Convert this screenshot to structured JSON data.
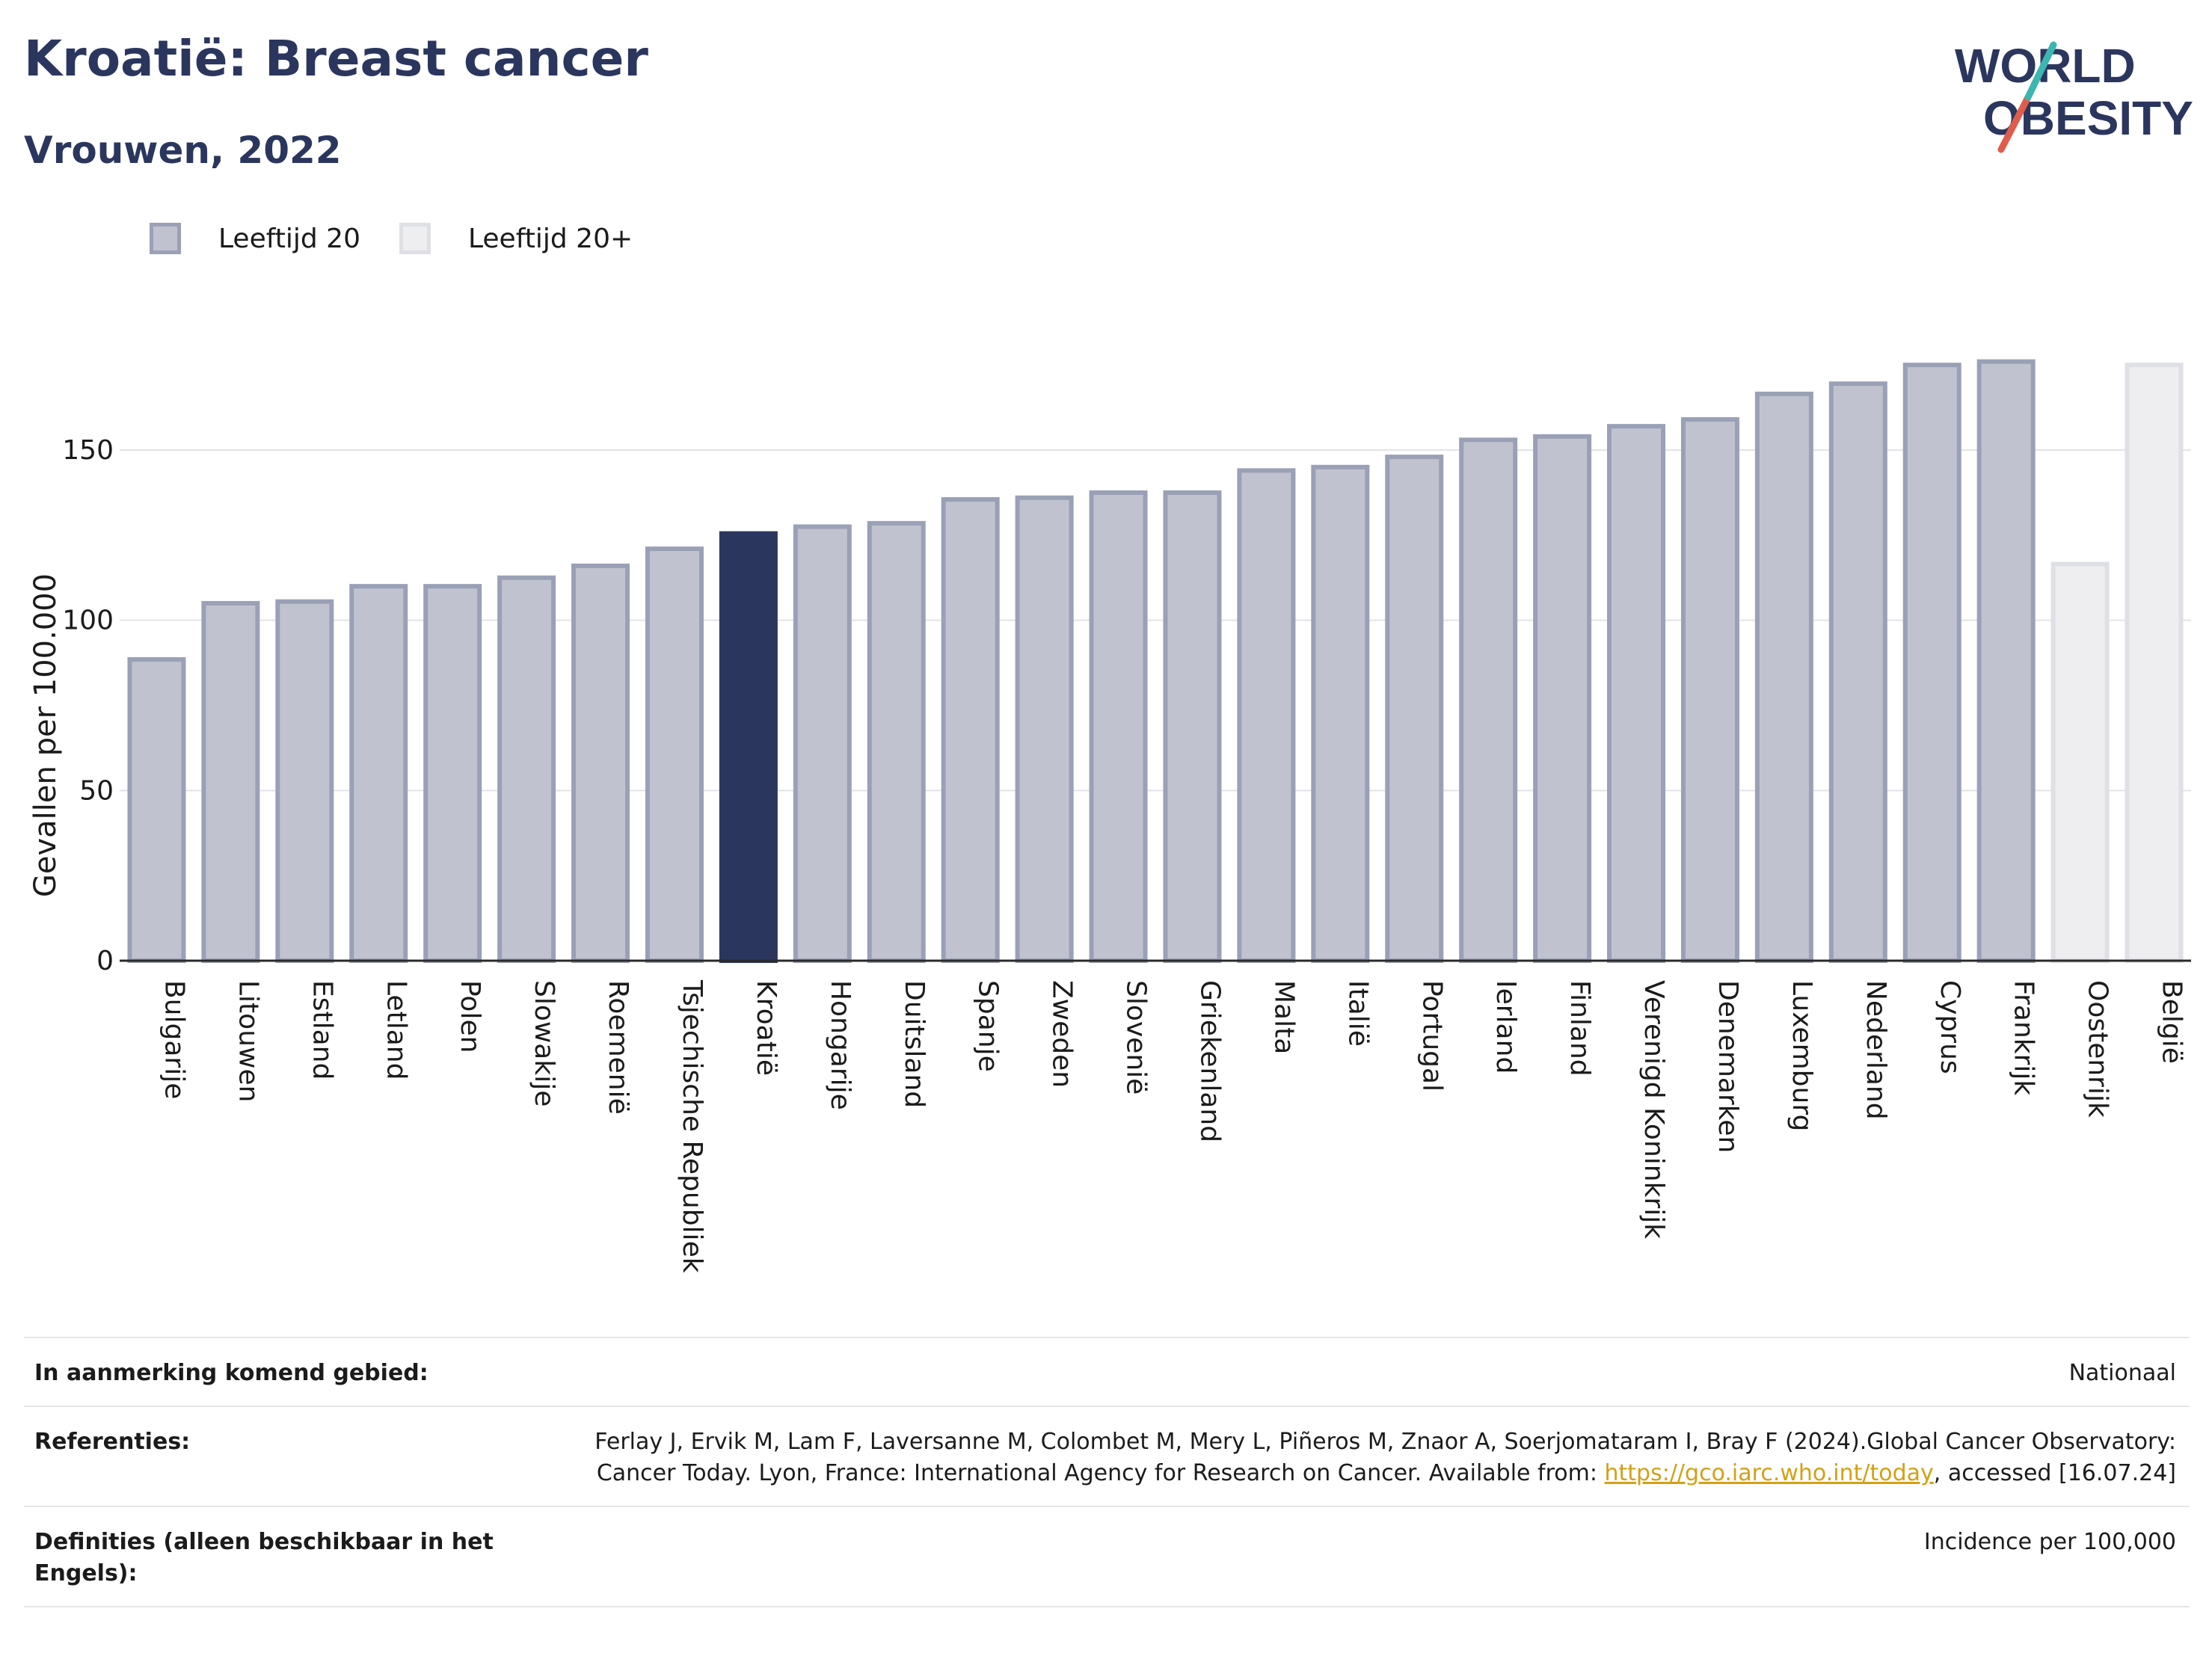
{
  "title": "Kroatië: Breast cancer",
  "subtitle": "Vrouwen, 2022",
  "logo": {
    "line1": "WORLD",
    "line2": "OBESITY"
  },
  "legend": [
    {
      "label": "Leeftijd 20",
      "color": "#c0c3cf",
      "border": "#9aa0b6"
    },
    {
      "label": "Leeftijd 20+",
      "color": "#eeeef1",
      "border": "#dfe0e6"
    }
  ],
  "colors": {
    "highlight": "#2b365f",
    "bar": "#c0c3cf",
    "bar_border": "#9aa0b6",
    "bar_light": "#eeeef1",
    "bar_light_border": "#dfe0e6",
    "title": "#2b365f"
  },
  "chart_data": {
    "type": "bar",
    "ylabel": "Gevallen per 100.000",
    "xlabel": "",
    "ylim": [
      0,
      185
    ],
    "yticks": [
      0,
      50,
      100,
      150
    ],
    "grid": true,
    "legend_position": "top-left",
    "highlight": "Kroatië",
    "categories": [
      "Bulgarije",
      "Litouwen",
      "Estland",
      "Letland",
      "Polen",
      "Slowakije",
      "Roemenië",
      "Tsjechische Republiek",
      "Kroatië",
      "Hongarije",
      "Duitsland",
      "Spanje",
      "Zweden",
      "Slovenië",
      "Griekenland",
      "Malta",
      "Italië",
      "Portugal",
      "Ierland",
      "Finland",
      "Verenigd Koninkrijk",
      "Denemarken",
      "Luxemburg",
      "Nederland",
      "Cyprus",
      "Frankrijk",
      "Oostenrijk",
      "België"
    ],
    "values": [
      88.5,
      105,
      105.5,
      110,
      110,
      112.5,
      116,
      121,
      125.5,
      127.5,
      128.5,
      135.5,
      136,
      137.5,
      137.5,
      144,
      145,
      148,
      153,
      154,
      157,
      159,
      166.5,
      169.5,
      175,
      176,
      116.5,
      175
    ],
    "series_group": [
      "Leeftijd 20",
      "Leeftijd 20",
      "Leeftijd 20",
      "Leeftijd 20",
      "Leeftijd 20",
      "Leeftijd 20",
      "Leeftijd 20",
      "Leeftijd 20",
      "Leeftijd 20",
      "Leeftijd 20",
      "Leeftijd 20",
      "Leeftijd 20",
      "Leeftijd 20",
      "Leeftijd 20",
      "Leeftijd 20",
      "Leeftijd 20",
      "Leeftijd 20",
      "Leeftijd 20",
      "Leeftijd 20",
      "Leeftijd 20",
      "Leeftijd 20",
      "Leeftijd 20",
      "Leeftijd 20",
      "Leeftijd 20",
      "Leeftijd 20",
      "Leeftijd 20",
      "Leeftijd 20+",
      "Leeftijd 20+"
    ]
  },
  "meta": {
    "area_label": "In aanmerking komend gebied:",
    "area_value": "Nationaal",
    "ref_label": "Referenties:",
    "ref_text": "Ferlay J, Ervik M, Lam F, Laversanne M, Colombet M, Mery L, Piñeros M, Znaor A, Soerjomataram I, Bray F (2024).Global Cancer Observatory: Cancer Today. Lyon, France: International Agency for Research on Cancer. Available from: ",
    "ref_link": "https://gco.iarc.who.int/today",
    "ref_suffix": ", accessed [16.07.24]",
    "def_label": "Definities (alleen beschikbaar in het Engels):",
    "def_value": "Incidence per 100,000"
  }
}
